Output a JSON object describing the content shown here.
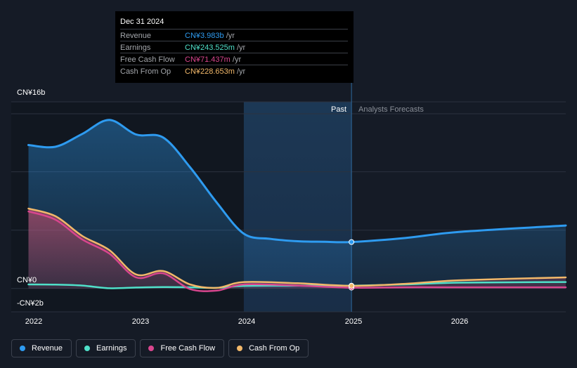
{
  "chart_data": {
    "type": "area",
    "x_domain": [
      2021.84,
      2026.99
    ],
    "y_domain": [
      -2,
      16
    ],
    "past_forecast_split": 2025.0,
    "forecast_shade_start": 2024.0,
    "y_ticks": [
      {
        "label": "CN¥16b",
        "value": 16
      },
      {
        "label": "CN¥0",
        "value": 0
      },
      {
        "label": "-CN¥2b",
        "value": -2
      }
    ],
    "gridlines": [
      16,
      10,
      5,
      0,
      -2
    ],
    "x_ticks": [
      {
        "label": "2022",
        "value": 2022.0
      },
      {
        "label": "2023",
        "value": 2023.0
      },
      {
        "label": "2024",
        "value": 2024.0
      },
      {
        "label": "2025",
        "value": 2025.0
      },
      {
        "label": "2026",
        "value": 2026.0
      }
    ],
    "past_label": "Past",
    "forecast_label": "Analysts Forecasts",
    "series": [
      {
        "name": "Revenue",
        "color": "#2e9bf0",
        "points": [
          [
            2022.0,
            12.3
          ],
          [
            2022.25,
            12.15
          ],
          [
            2022.5,
            13.25
          ],
          [
            2022.75,
            14.45
          ],
          [
            2023.0,
            13.2
          ],
          [
            2023.25,
            12.95
          ],
          [
            2023.5,
            10.4
          ],
          [
            2023.75,
            7.35
          ],
          [
            2024.0,
            4.7
          ],
          [
            2024.25,
            4.25
          ],
          [
            2024.5,
            4.05
          ],
          [
            2024.75,
            4.0
          ],
          [
            2025.0,
            3.983
          ],
          [
            2025.5,
            4.33
          ],
          [
            2026.0,
            4.85
          ],
          [
            2026.99,
            5.4
          ]
        ]
      },
      {
        "name": "Earnings",
        "color": "#4fe0c9",
        "points": [
          [
            2022.0,
            0.35
          ],
          [
            2022.25,
            0.33
          ],
          [
            2022.5,
            0.25
          ],
          [
            2022.75,
            0.02
          ],
          [
            2023.0,
            0.08
          ],
          [
            2023.25,
            0.12
          ],
          [
            2023.5,
            0.1
          ],
          [
            2023.75,
            0.05
          ],
          [
            2024.0,
            0.22
          ],
          [
            2024.5,
            0.24
          ],
          [
            2025.0,
            0.243525
          ],
          [
            2025.5,
            0.35
          ],
          [
            2026.0,
            0.5
          ],
          [
            2026.99,
            0.55
          ]
        ]
      },
      {
        "name": "Free Cash Flow",
        "color": "#d9468e",
        "points": [
          [
            2022.0,
            6.6
          ],
          [
            2022.25,
            5.9
          ],
          [
            2022.5,
            4.2
          ],
          [
            2022.75,
            3.0
          ],
          [
            2023.0,
            0.95
          ],
          [
            2023.25,
            1.3
          ],
          [
            2023.5,
            -0.05
          ],
          [
            2023.75,
            -0.18
          ],
          [
            2024.0,
            0.35
          ],
          [
            2024.5,
            0.25
          ],
          [
            2025.0,
            0.071437
          ],
          [
            2025.5,
            0.1
          ],
          [
            2026.0,
            0.1
          ],
          [
            2026.99,
            0.1
          ]
        ]
      },
      {
        "name": "Cash From Op",
        "color": "#f2b86a",
        "points": [
          [
            2022.0,
            6.85
          ],
          [
            2022.25,
            6.2
          ],
          [
            2022.5,
            4.5
          ],
          [
            2022.75,
            3.3
          ],
          [
            2023.0,
            1.2
          ],
          [
            2023.25,
            1.5
          ],
          [
            2023.5,
            0.35
          ],
          [
            2023.75,
            0.05
          ],
          [
            2024.0,
            0.55
          ],
          [
            2024.5,
            0.45
          ],
          [
            2025.0,
            0.228653
          ],
          [
            2025.5,
            0.4
          ],
          [
            2026.0,
            0.7
          ],
          [
            2026.99,
            0.95
          ]
        ]
      }
    ]
  },
  "tooltip": {
    "date": "Dec 31 2024",
    "rows": [
      {
        "name": "Revenue",
        "value": "CN¥3.983b",
        "unit": " /yr",
        "color": "#2e9bf0"
      },
      {
        "name": "Earnings",
        "value": "CN¥243.525m",
        "unit": " /yr",
        "color": "#4fe0c9"
      },
      {
        "name": "Free Cash Flow",
        "value": "CN¥71.437m",
        "unit": " /yr",
        "color": "#d9468e"
      },
      {
        "name": "Cash From Op",
        "value": "CN¥228.653m",
        "unit": " /yr",
        "color": "#f2b86a"
      }
    ]
  },
  "legend": [
    {
      "label": "Revenue",
      "color": "#2e9bf0"
    },
    {
      "label": "Earnings",
      "color": "#4fe0c9"
    },
    {
      "label": "Free Cash Flow",
      "color": "#d9468e"
    },
    {
      "label": "Cash From Op",
      "color": "#f2b86a"
    }
  ]
}
